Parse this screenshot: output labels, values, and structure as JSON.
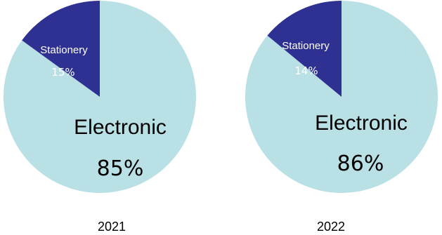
{
  "colors": {
    "electronic": "#b9e0e4",
    "stationery": "#2e3192",
    "dark_text": "#000000",
    "light_text": "#ffffff"
  },
  "chart_data": [
    {
      "type": "pie",
      "title": "2021",
      "slices": [
        {
          "label": "Electronic",
          "value": 85,
          "value_label": "85%"
        },
        {
          "label": "Stationery",
          "value": 15,
          "value_label": "15%"
        }
      ]
    },
    {
      "type": "pie",
      "title": "2022",
      "slices": [
        {
          "label": "Electronic",
          "value": 86,
          "value_label": "86%"
        },
        {
          "label": "Stationery",
          "value": 14,
          "value_label": "14%"
        }
      ]
    }
  ]
}
